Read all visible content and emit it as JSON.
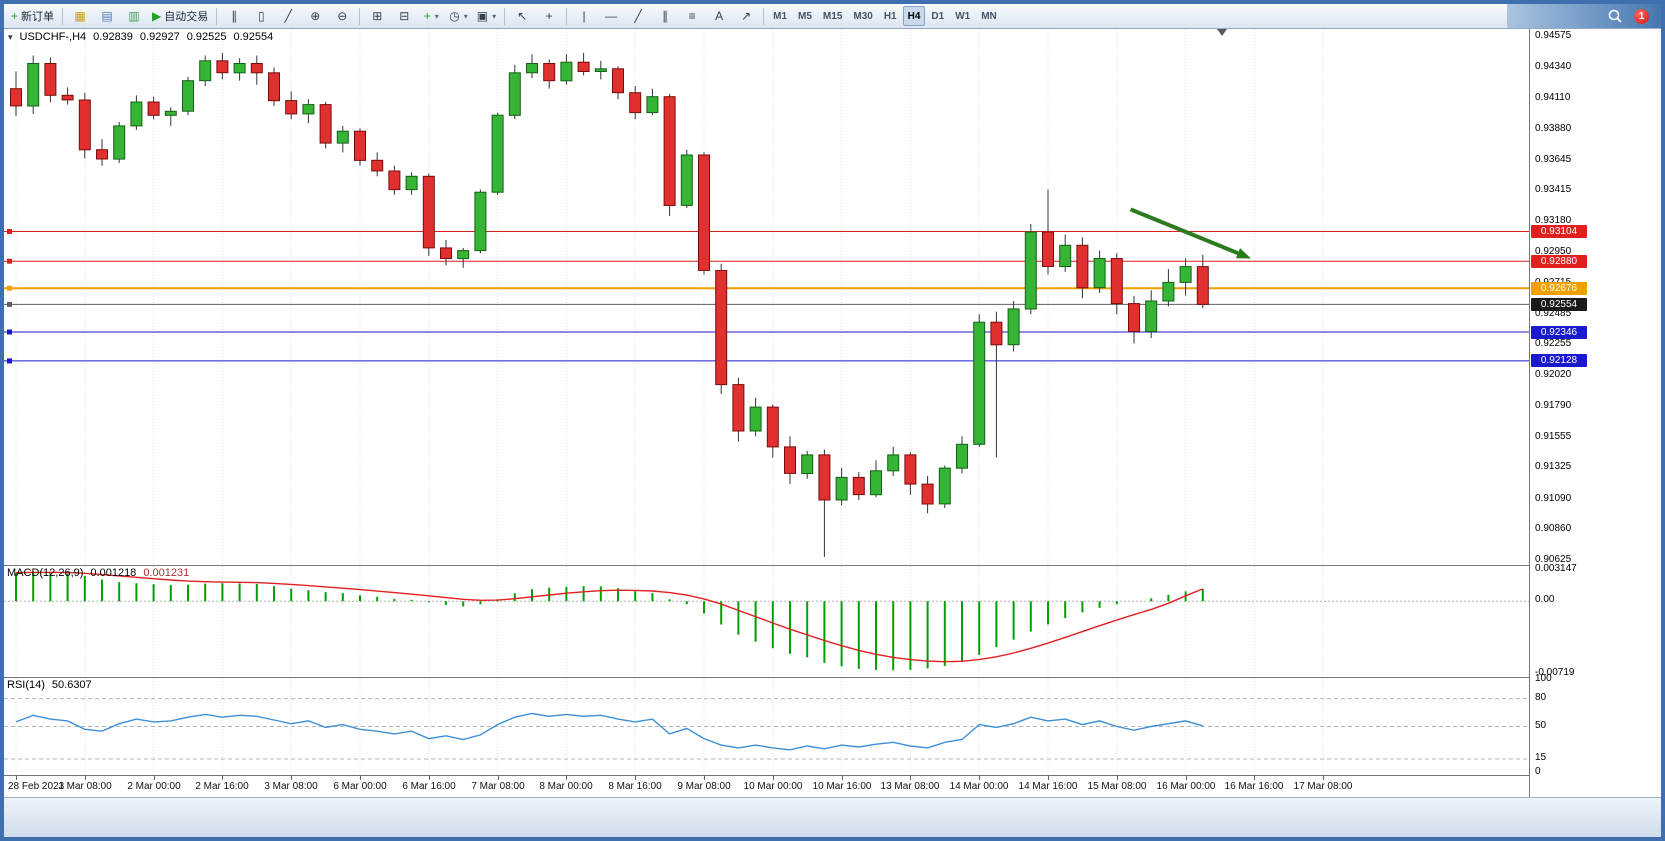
{
  "toolbar": {
    "buttons": [
      {
        "name": "new-order-button",
        "label": "新订单",
        "icon": "+",
        "icon_color": "#1fa51f"
      },
      {
        "name": "sep"
      },
      {
        "name": "charts-button",
        "icon": "▦",
        "icon_color": "#c99a1a"
      },
      {
        "name": "market-watch-button",
        "icon": "▤",
        "icon_color": "#4a7ab5"
      },
      {
        "name": "navigator-button",
        "icon": "▥",
        "icon_color": "#3f9d5a"
      },
      {
        "name": "auto-trading-button",
        "label": "自动交易",
        "icon": "▶",
        "icon_color": "#1fa51f"
      },
      {
        "name": "sep"
      },
      {
        "name": "bar-chart-button",
        "icon": "∥"
      },
      {
        "name": "candlestick-button",
        "icon": "▯"
      },
      {
        "name": "line-chart-button",
        "icon": "╱"
      },
      {
        "name": "zoom-in-button",
        "icon": "⊕"
      },
      {
        "name": "zoom-out-button",
        "icon": "⊖"
      },
      {
        "name": "sep"
      },
      {
        "name": "tile-windows-button",
        "icon": "⊞"
      },
      {
        "name": "cascade-windows-button",
        "icon": "⊟"
      },
      {
        "name": "indicators-button",
        "icon": "+",
        "icon_color": "#1fa51f",
        "dropdown": true
      },
      {
        "name": "periods-button",
        "icon": "◷",
        "dropdown": true
      },
      {
        "name": "templates-button",
        "icon": "▣",
        "dropdown": true
      },
      {
        "name": "sep"
      },
      {
        "name": "cursor-button",
        "icon": "↖"
      },
      {
        "name": "crosshair-button",
        "icon": "+"
      },
      {
        "name": "sep"
      },
      {
        "name": "vertical-line-button",
        "icon": "|"
      },
      {
        "name": "horizontal-line-button",
        "icon": "—"
      },
      {
        "name": "trendline-button",
        "icon": "╱"
      },
      {
        "name": "channel-button",
        "icon": "∥"
      },
      {
        "name": "fibonacci-button",
        "icon": "≡"
      },
      {
        "name": "text-button",
        "icon": "A"
      },
      {
        "name": "arrow-tool-button",
        "icon": "↗"
      },
      {
        "name": "sep"
      }
    ],
    "timeframes": [
      "M1",
      "M5",
      "M15",
      "M30",
      "H1",
      "H4",
      "D1",
      "W1",
      "MN"
    ],
    "active_timeframe": "H4",
    "notification_count": "1"
  },
  "chart": {
    "dropdown_icon": "▾",
    "title": "USDCHF-,H4",
    "open": "0.92839",
    "high": "0.92927",
    "low": "0.92525",
    "close": "0.92554"
  },
  "price_axis": {
    "labels": [
      "0.94575",
      "0.94340",
      "0.94110",
      "0.93880",
      "0.93645",
      "0.93415",
      "0.93180",
      "0.92950",
      "0.92715",
      "0.92485",
      "0.92255",
      "0.92020",
      "0.91790",
      "0.91555",
      "0.91325",
      "0.91090",
      "0.90860",
      "0.90625"
    ],
    "tags": [
      {
        "value": "0.93104",
        "bg": "#e01f1f",
        "fg": "#ffffff"
      },
      {
        "value": "0.92880",
        "bg": "#e01f1f",
        "fg": "#ffffff"
      },
      {
        "value": "0.92676",
        "bg": "#f0a000",
        "fg": "#ffffff"
      },
      {
        "value": "0.92554",
        "bg": "#1a1a1a",
        "fg": "#ffffff"
      },
      {
        "value": "0.92346",
        "bg": "#1a1acc",
        "fg": "#ffffff"
      },
      {
        "value": "0.92128",
        "bg": "#1a1acc",
        "fg": "#ffffff"
      }
    ]
  },
  "time_axis": {
    "labels": [
      "28 Feb 2023",
      "1 Mar 08:00",
      "2 Mar 00:00",
      "2 Mar 16:00",
      "3 Mar 08:00",
      "6 Mar 00:00",
      "6 Mar 16:00",
      "7 Mar 08:00",
      "8 Mar 00:00",
      "8 Mar 16:00",
      "9 Mar 08:00",
      "10 Mar 00:00",
      "10 Mar 16:00",
      "13 Mar 08:00",
      "14 Mar 00:00",
      "14 Mar 16:00",
      "15 Mar 08:00",
      "16 Mar 00:00",
      "16 Mar 16:00",
      "17 Mar 08:00"
    ]
  },
  "macd": {
    "name": "MACD(12,26,9)",
    "value_main": "0.001218",
    "value_signal": "0.001231",
    "axis": [
      "0.003147",
      "0.00",
      "-0.00719"
    ]
  },
  "rsi": {
    "name": "RSI(14)",
    "value": "50.6307",
    "axis": [
      "100",
      "80",
      "50",
      "15",
      "0"
    ]
  },
  "chart_data": [
    {
      "type": "candlestick",
      "symbol": "USDCHF-",
      "timeframe": "H4",
      "ylim": [
        0.9059,
        0.9463
      ],
      "up_color": "#35b435",
      "down_color": "#e03030",
      "levels": [
        {
          "price": 0.93104,
          "color": "#e01f1f",
          "width": 1
        },
        {
          "price": 0.9288,
          "color": "#e01f1f",
          "width": 1
        },
        {
          "price": 0.92676,
          "color": "#f0a000",
          "width": 2
        },
        {
          "price": 0.92554,
          "color": "#606060",
          "width": 1
        },
        {
          "price": 0.92346,
          "color": "#1a1acc",
          "width": 1
        },
        {
          "price": 0.92128,
          "color": "#1a1acc",
          "width": 1
        }
      ],
      "arrow": {
        "from_index": 64.8,
        "from_price": 0.9327,
        "to_index": 71.8,
        "to_price": 0.929,
        "color": "#2c7a1e"
      },
      "candles": [
        [
          "28 Feb 16:00",
          0.9418,
          0.9431,
          0.93975,
          0.9405
        ],
        [
          "28 Feb 20:00",
          0.9405,
          0.9443,
          0.9399,
          0.9437
        ],
        [
          "1 Mar 00:00",
          0.9437,
          0.94415,
          0.9408,
          0.9413
        ],
        [
          "1 Mar 04:00",
          0.9413,
          0.9419,
          0.9406,
          0.94095
        ],
        [
          "1 Mar 08:00",
          0.94095,
          0.9415,
          0.93655,
          0.9372
        ],
        [
          "1 Mar 12:00",
          0.9372,
          0.938,
          0.936,
          0.9365
        ],
        [
          "1 Mar 16:00",
          0.9365,
          0.9393,
          0.9362,
          0.939
        ],
        [
          "1 Mar 20:00",
          0.939,
          0.9413,
          0.9387,
          0.9408
        ],
        [
          "2 Mar 00:00",
          0.9408,
          0.9412,
          0.9395,
          0.9398
        ],
        [
          "2 Mar 04:00",
          0.9398,
          0.9404,
          0.939,
          0.9401
        ],
        [
          "2 Mar 08:00",
          0.9401,
          0.9427,
          0.9398,
          0.9424
        ],
        [
          "2 Mar 12:00",
          0.9424,
          0.9443,
          0.942,
          0.9439
        ],
        [
          "2 Mar 16:00",
          0.9439,
          0.9445,
          0.9425,
          0.943
        ],
        [
          "2 Mar 20:00",
          0.943,
          0.9441,
          0.9424,
          0.9437
        ],
        [
          "3 Mar 00:00",
          0.9437,
          0.9443,
          0.9421,
          0.943
        ],
        [
          "3 Mar 04:00",
          0.943,
          0.9434,
          0.9405,
          0.9409
        ],
        [
          "3 Mar 08:00",
          0.9409,
          0.9416,
          0.9395,
          0.9399
        ],
        [
          "3 Mar 12:00",
          0.9399,
          0.941,
          0.9392,
          0.9406
        ],
        [
          "3 Mar 16:00",
          0.9406,
          0.9408,
          0.9373,
          0.9377
        ],
        [
          "3 Mar 20:00",
          0.9377,
          0.939,
          0.937,
          0.9386
        ],
        [
          "6 Mar 00:00",
          0.9386,
          0.9388,
          0.936,
          0.9364
        ],
        [
          "6 Mar 04:00",
          0.9364,
          0.937,
          0.9352,
          0.9356
        ],
        [
          "6 Mar 08:00",
          0.9356,
          0.936,
          0.9338,
          0.9342
        ],
        [
          "6 Mar 12:00",
          0.9342,
          0.9355,
          0.9338,
          0.9352
        ],
        [
          "6 Mar 16:00",
          0.9352,
          0.9354,
          0.9292,
          0.9298
        ],
        [
          "6 Mar 20:00",
          0.9298,
          0.9304,
          0.9285,
          0.929
        ],
        [
          "7 Mar 00:00",
          0.929,
          0.9298,
          0.9283,
          0.9296
        ],
        [
          "7 Mar 04:00",
          0.9296,
          0.9342,
          0.9294,
          0.934
        ],
        [
          "7 Mar 08:00",
          0.934,
          0.94,
          0.9338,
          0.9398
        ],
        [
          "7 Mar 12:00",
          0.9398,
          0.9436,
          0.9395,
          0.943
        ],
        [
          "7 Mar 16:00",
          0.943,
          0.9444,
          0.9426,
          0.9437
        ],
        [
          "7 Mar 20:00",
          0.9437,
          0.944,
          0.9418,
          0.9424
        ],
        [
          "8 Mar 00:00",
          0.9424,
          0.9444,
          0.9421,
          0.9438
        ],
        [
          "8 Mar 04:00",
          0.9438,
          0.9445,
          0.9428,
          0.9431
        ],
        [
          "8 Mar 08:00",
          0.9431,
          0.9439,
          0.9425,
          0.9433
        ],
        [
          "8 Mar 12:00",
          0.9433,
          0.9435,
          0.941,
          0.9415
        ],
        [
          "8 Mar 16:00",
          0.9415,
          0.942,
          0.9395,
          0.94
        ],
        [
          "8 Mar 20:00",
          0.94,
          0.9418,
          0.9398,
          0.9412
        ],
        [
          "9 Mar 00:00",
          0.9412,
          0.9414,
          0.9322,
          0.933
        ],
        [
          "9 Mar 04:00",
          0.933,
          0.9372,
          0.9328,
          0.9368
        ],
        [
          "9 Mar 08:00",
          0.9368,
          0.937,
          0.9278,
          0.9281
        ],
        [
          "9 Mar 12:00",
          0.9281,
          0.9286,
          0.9188,
          0.9195
        ],
        [
          "9 Mar 16:00",
          0.9195,
          0.92,
          0.9152,
          0.916
        ],
        [
          "9 Mar 20:00",
          0.916,
          0.9185,
          0.9156,
          0.9178
        ],
        [
          "10 Mar 00:00",
          0.9178,
          0.918,
          0.914,
          0.9148
        ],
        [
          "10 Mar 04:00",
          0.9148,
          0.9156,
          0.912,
          0.9128
        ],
        [
          "10 Mar 08:00",
          0.9128,
          0.9145,
          0.9124,
          0.9142
        ],
        [
          "10 Mar 12:00",
          0.9142,
          0.9146,
          0.9065,
          0.9108
        ],
        [
          "10 Mar 16:00",
          0.9108,
          0.9132,
          0.9104,
          0.9125
        ],
        [
          "10 Mar 20:00",
          0.9125,
          0.9129,
          0.9108,
          0.9112
        ],
        [
          "13 Mar 00:00",
          0.9112,
          0.9138,
          0.911,
          0.913
        ],
        [
          "13 Mar 04:00",
          0.913,
          0.9148,
          0.9126,
          0.9142
        ],
        [
          "13 Mar 08:00",
          0.9142,
          0.9144,
          0.9112,
          0.912
        ],
        [
          "13 Mar 12:00",
          0.912,
          0.9126,
          0.9098,
          0.9105
        ],
        [
          "13 Mar 16:00",
          0.9105,
          0.9134,
          0.9102,
          0.9132
        ],
        [
          "13 Mar 20:00",
          0.9132,
          0.9156,
          0.9128,
          0.915
        ],
        [
          "14 Mar 00:00",
          0.915,
          0.9248,
          0.9148,
          0.9242
        ],
        [
          "14 Mar 04:00",
          0.9242,
          0.925,
          0.914,
          0.9225
        ],
        [
          "14 Mar 08:00",
          0.9225,
          0.9258,
          0.922,
          0.9252
        ],
        [
          "14 Mar 12:00",
          0.9252,
          0.9316,
          0.9248,
          0.931
        ],
        [
          "14 Mar 16:00",
          0.931,
          0.9342,
          0.9278,
          0.9284
        ],
        [
          "14 Mar 20:00",
          0.9284,
          0.9308,
          0.928,
          0.93
        ],
        [
          "15 Mar 00:00",
          0.93,
          0.9306,
          0.926,
          0.9268
        ],
        [
          "15 Mar 04:00",
          0.9268,
          0.9296,
          0.9264,
          0.929
        ],
        [
          "15 Mar 08:00",
          0.929,
          0.9294,
          0.9248,
          0.9256
        ],
        [
          "15 Mar 12:00",
          0.9256,
          0.9262,
          0.9226,
          0.9235
        ],
        [
          "15 Mar 16:00",
          0.9235,
          0.9266,
          0.923,
          0.9258
        ],
        [
          "15 Mar 20:00",
          0.9258,
          0.9282,
          0.9254,
          0.9272
        ],
        [
          "16 Mar 00:00",
          0.9272,
          0.929,
          0.9262,
          0.92839
        ],
        [
          "16 Mar 04:00",
          0.92839,
          0.92927,
          0.92525,
          0.92554
        ]
      ]
    },
    {
      "type": "bar",
      "name": "MACD(12,26,9)",
      "ylim": [
        -0.0075,
        0.0035
      ],
      "axis_marks": [
        0.003147,
        0,
        -0.00719
      ],
      "histogram_color": "#00a000",
      "signal_color": "#e02020",
      "values": [
        0.0028,
        0.00295,
        0.0029,
        0.00275,
        0.0025,
        0.00215,
        0.0019,
        0.0018,
        0.0017,
        0.0016,
        0.00165,
        0.00175,
        0.0018,
        0.00178,
        0.00172,
        0.0015,
        0.00125,
        0.0011,
        0.0009,
        0.0008,
        0.0006,
        0.00045,
        0.00025,
        0.00015,
        -0.0001,
        -0.00035,
        -0.0005,
        -0.0003,
        0.0002,
        0.0008,
        0.0012,
        0.00135,
        0.00145,
        0.0015,
        0.00148,
        0.0013,
        0.001,
        0.0008,
        0.0002,
        -0.0003,
        -0.0012,
        -0.0023,
        -0.0033,
        -0.004,
        -0.00465,
        -0.0052,
        -0.00555,
        -0.0061,
        -0.00645,
        -0.0067,
        -0.0068,
        -0.00685,
        -0.0068,
        -0.00665,
        -0.0064,
        -0.006,
        -0.0053,
        -0.00455,
        -0.0038,
        -0.003,
        -0.0023,
        -0.00165,
        -0.0011,
        -0.00065,
        -0.0003,
        0.0,
        0.0003,
        0.00065,
        0.00098,
        0.001218
      ],
      "signal": [
        0.00285,
        0.00287,
        0.00288,
        0.00285,
        0.00278,
        0.00265,
        0.00252,
        0.00238,
        0.00224,
        0.00211,
        0.002,
        0.00194,
        0.0019,
        0.00188,
        0.00185,
        0.00178,
        0.00168,
        0.00156,
        0.00143,
        0.0013,
        0.00116,
        0.00101,
        0.00086,
        0.00071,
        0.00055,
        0.00037,
        0.0002,
        0.0001,
        0.00012,
        0.00026,
        0.00045,
        0.00063,
        0.0008,
        0.00094,
        0.00105,
        0.0011,
        0.00108,
        0.00102,
        0.00086,
        0.00062,
        0.00024,
        -0.00028,
        -0.0009,
        -0.00152,
        -0.00215,
        -0.00276,
        -0.00332,
        -0.00388,
        -0.0044,
        -0.00486,
        -0.00525,
        -0.00556,
        -0.00578,
        -0.00592,
        -0.00598,
        -0.00594,
        -0.00578,
        -0.0055,
        -0.00512,
        -0.00466,
        -0.00414,
        -0.00358,
        -0.003,
        -0.00242,
        -0.00186,
        -0.00132,
        -0.0008,
        -0.0002,
        0.00055,
        0.001231
      ],
      "last_main": 0.001218,
      "last_signal": 0.001231
    },
    {
      "type": "line",
      "name": "RSI(14)",
      "ylim": [
        0,
        100
      ],
      "levels": [
        80,
        50,
        15
      ],
      "line_color": "#3d8fd8",
      "values": [
        55,
        62,
        58,
        56,
        47,
        45,
        53,
        58,
        55,
        56,
        60,
        63,
        60,
        62,
        61,
        57,
        53,
        56,
        49,
        52,
        47,
        45,
        42,
        45,
        37,
        40,
        36,
        41,
        52,
        60,
        64,
        61,
        63,
        61,
        62,
        58,
        55,
        58,
        42,
        48,
        37,
        30,
        27,
        30,
        27,
        25,
        29,
        26,
        30,
        28,
        31,
        33,
        29,
        27,
        33,
        36,
        52,
        49,
        53,
        60,
        56,
        58,
        52,
        56,
        50,
        46,
        50,
        53,
        56,
        50.63
      ],
      "last": 50.6307
    }
  ]
}
